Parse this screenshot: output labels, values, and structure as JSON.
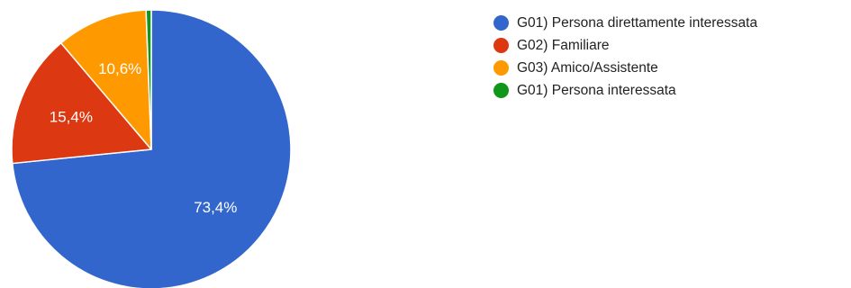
{
  "chart_data": {
    "type": "pie",
    "title": "",
    "start_angle_deg": 0,
    "direction": "clockwise",
    "slices": [
      {
        "name": "G01) Persona direttamente interessata",
        "value": 73.4,
        "label": "73,4%",
        "color": "#3366cc"
      },
      {
        "name": "G02) Familiare",
        "value": 15.4,
        "label": "15,4%",
        "color": "#dc3912"
      },
      {
        "name": "G03) Amico/Assistente",
        "value": 10.6,
        "label": "10,6%",
        "color": "#ff9900"
      },
      {
        "name": "G01) Persona interessata",
        "value": 0.6,
        "label": "",
        "color": "#109618"
      }
    ],
    "legend_position": "top-right"
  }
}
